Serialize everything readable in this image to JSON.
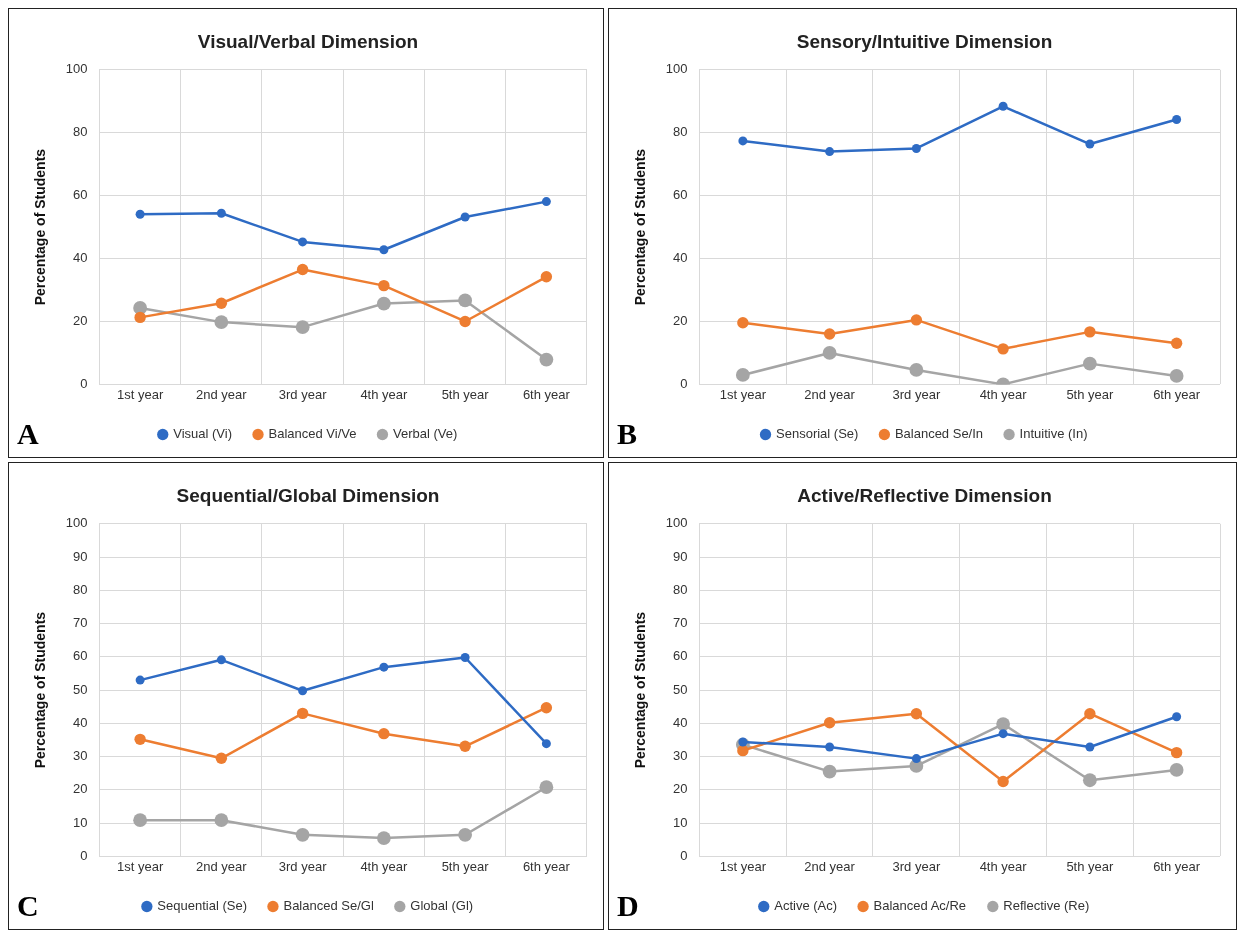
{
  "chart_data": [
    {
      "type": "line",
      "title": "Visual/Verbal Dimension",
      "ylabel": "Percentage of Students",
      "categories": [
        "1st year",
        "2nd year",
        "3rd year",
        "4th year",
        "5th year",
        "6th year"
      ],
      "series": [
        {
          "name": "Visual (Vi)",
          "color": "#2e6bc4",
          "values": [
            54.1,
            54.4,
            45.3,
            42.8,
            53.2,
            58.1
          ]
        },
        {
          "name": "Balanced Vi/Ve",
          "color": "#ed7d31",
          "values": [
            21.3,
            25.8,
            36.5,
            31.4,
            20,
            34.2
          ]
        },
        {
          "name": "Verbal (Ve)",
          "color": "#a5a5a5",
          "values": [
            24.3,
            19.8,
            18.2,
            25.7,
            26.7,
            7.9
          ]
        }
      ],
      "ylim": [
        0,
        100
      ],
      "yticks": [
        0,
        20,
        40,
        60,
        80,
        100
      ],
      "grid": true,
      "legend": "bottom",
      "marker": "circle",
      "line_style": "solid",
      "annotations": [
        "A"
      ]
    },
    {
      "type": "line",
      "title": "Sensory/Intuitive Dimension",
      "ylabel": "Percentage of Students",
      "categories": [
        "1st year",
        "2nd year",
        "3rd year",
        "4th year",
        "5th year",
        "6th year"
      ],
      "series": [
        {
          "name": "Sensorial (Se)",
          "color": "#2e6bc4",
          "values": [
            77.4,
            74,
            75,
            88.4,
            76.4,
            84.2
          ]
        },
        {
          "name": "Balanced Se/In",
          "color": "#ed7d31",
          "values": [
            19.6,
            16,
            20.5,
            11.3,
            16.7,
            13.1
          ]
        },
        {
          "name": "Intuitive (In)",
          "color": "#a5a5a5",
          "values": [
            3,
            10,
            4.6,
            0,
            6.6,
            2.7
          ]
        }
      ],
      "ylim": [
        0,
        100
      ],
      "yticks": [
        0,
        20,
        40,
        60,
        80,
        100
      ],
      "grid": true,
      "legend": "bottom",
      "marker": "circle",
      "line_style": "solid",
      "annotations": [
        "B"
      ]
    },
    {
      "type": "line",
      "title": "Sequential/Global Dimension",
      "ylabel": "Percentage of Students",
      "categories": [
        "1st year",
        "2nd year",
        "3rd year",
        "4th year",
        "5th year",
        "6th year"
      ],
      "series": [
        {
          "name": "Sequential (Se)",
          "color": "#2e6bc4",
          "values": [
            53,
            59.1,
            49.8,
            56.9,
            59.8,
            33.9
          ]
        },
        {
          "name": "Balanced Se/Gl",
          "color": "#ed7d31",
          "values": [
            35.2,
            29.5,
            43,
            36.9,
            33.1,
            44.7
          ]
        },
        {
          "name": "Global (Gl)",
          "color": "#a5a5a5",
          "values": [
            10.9,
            10.9,
            6.5,
            5.5,
            6.5,
            20.8
          ]
        }
      ],
      "ylim": [
        0,
        100
      ],
      "yticks": [
        0,
        10,
        20,
        30,
        40,
        50,
        60,
        70,
        80,
        90,
        100
      ],
      "grid": true,
      "legend": "bottom",
      "marker": "circle",
      "line_style": "solid",
      "annotations": [
        "C"
      ]
    },
    {
      "type": "line",
      "title": "Active/Reflective Dimension",
      "ylabel": "Percentage of Students",
      "categories": [
        "1st year",
        "2nd year",
        "3rd year",
        "4th year",
        "5th year",
        "6th year"
      ],
      "series": [
        {
          "name": "Active (Ac)",
          "color": "#2e6bc4",
          "values": [
            34.4,
            32.9,
            29.4,
            36.9,
            32.9,
            42
          ]
        },
        {
          "name": "Balanced Ac/Re",
          "color": "#ed7d31",
          "values": [
            31.8,
            40.2,
            42.9,
            22.5,
            42.9,
            31.2
          ]
        },
        {
          "name": "Reflective (Re)",
          "color": "#a5a5a5",
          "values": [
            33.6,
            25.5,
            27.2,
            39.8,
            22.9,
            26
          ]
        }
      ],
      "ylim": [
        0,
        100
      ],
      "yticks": [
        0,
        10,
        20,
        30,
        40,
        50,
        60,
        70,
        80,
        90,
        100
      ],
      "grid": true,
      "legend": "bottom",
      "marker": "circle",
      "line_style": "solid",
      "annotations": [
        "D"
      ]
    }
  ]
}
